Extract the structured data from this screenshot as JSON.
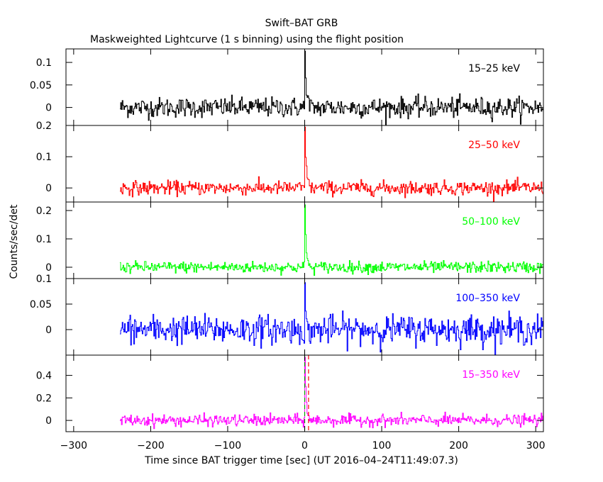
{
  "chart_data": {
    "type": "line",
    "title": "Swift–BAT GRB",
    "subtitle": "Maskweighted Lightcurve (1 s binning) using the flight position",
    "xlabel": "Time since BAT trigger time [sec] (UT 2016–04–24T11:49:07.3)",
    "ylabel": "Counts/sec/det",
    "xlim": [
      -310,
      310
    ],
    "xticks": [
      -300,
      -200,
      -100,
      0,
      100,
      200,
      300
    ],
    "xtick_labels": [
      "−300",
      "−200",
      "−100",
      "0",
      "100",
      "200",
      "300"
    ],
    "data_start": -240,
    "data_end": 310,
    "vlines": [
      0,
      5
    ],
    "panels": [
      {
        "series_label": "15–25 keV",
        "color": "#000000",
        "ylim": [
          -0.04,
          0.13
        ],
        "yticks": [
          0,
          0.05,
          0.1
        ],
        "ytick_labels": [
          "0",
          "0.05",
          "0.1"
        ],
        "noise": 0.011,
        "peak": 0.125,
        "tail": [
          [
            1,
            0.06
          ],
          [
            2,
            0.04
          ],
          [
            3,
            0.03
          ],
          [
            4,
            0.02
          ],
          [
            5,
            0.015
          ]
        ]
      },
      {
        "series_label": "25–50 keV",
        "color": "#ff0000",
        "ylim": [
          -0.045,
          0.2
        ],
        "yticks": [
          0,
          0.1,
          0.2
        ],
        "ytick_labels": [
          "0",
          "0.1",
          "0.2"
        ],
        "noise": 0.011,
        "peak": 0.195,
        "tail": [
          [
            1,
            0.1
          ],
          [
            2,
            0.06
          ],
          [
            3,
            0.04
          ],
          [
            4,
            0.03
          ],
          [
            5,
            0.02
          ]
        ]
      },
      {
        "series_label": "50–100 keV",
        "color": "#00ff00",
        "ylim": [
          -0.04,
          0.23
        ],
        "yticks": [
          0,
          0.1,
          0.2
        ],
        "ytick_labels": [
          "0",
          "0.1",
          "0.2"
        ],
        "noise": 0.01,
        "peak": 0.22,
        "tail": [
          [
            1,
            0.12
          ],
          [
            2,
            0.06
          ],
          [
            3,
            0.03
          ],
          [
            4,
            0.02
          ]
        ]
      },
      {
        "series_label": "100–350 keV",
        "color": "#0000ff",
        "ylim": [
          -0.05,
          0.1
        ],
        "yticks": [
          0,
          0.05,
          0.1
        ],
        "ytick_labels": [
          "0",
          "0.05",
          "0.1"
        ],
        "noise": 0.014,
        "peak": 0.092,
        "tail": [
          [
            1,
            0.04
          ],
          [
            2,
            0.02
          ],
          [
            3,
            0.01
          ]
        ]
      },
      {
        "series_label": "15–350 keV",
        "color": "#ff00ff",
        "ylim": [
          -0.1,
          0.58
        ],
        "yticks": [
          0,
          0.2,
          0.4
        ],
        "ytick_labels": [
          "0",
          "0.2",
          "0.4"
        ],
        "noise": 0.025,
        "peak": 0.56,
        "tail": [
          [
            1,
            0.3
          ],
          [
            2,
            0.15
          ],
          [
            3,
            0.08
          ],
          [
            4,
            0.05
          ],
          [
            5,
            0.03
          ]
        ]
      }
    ]
  }
}
